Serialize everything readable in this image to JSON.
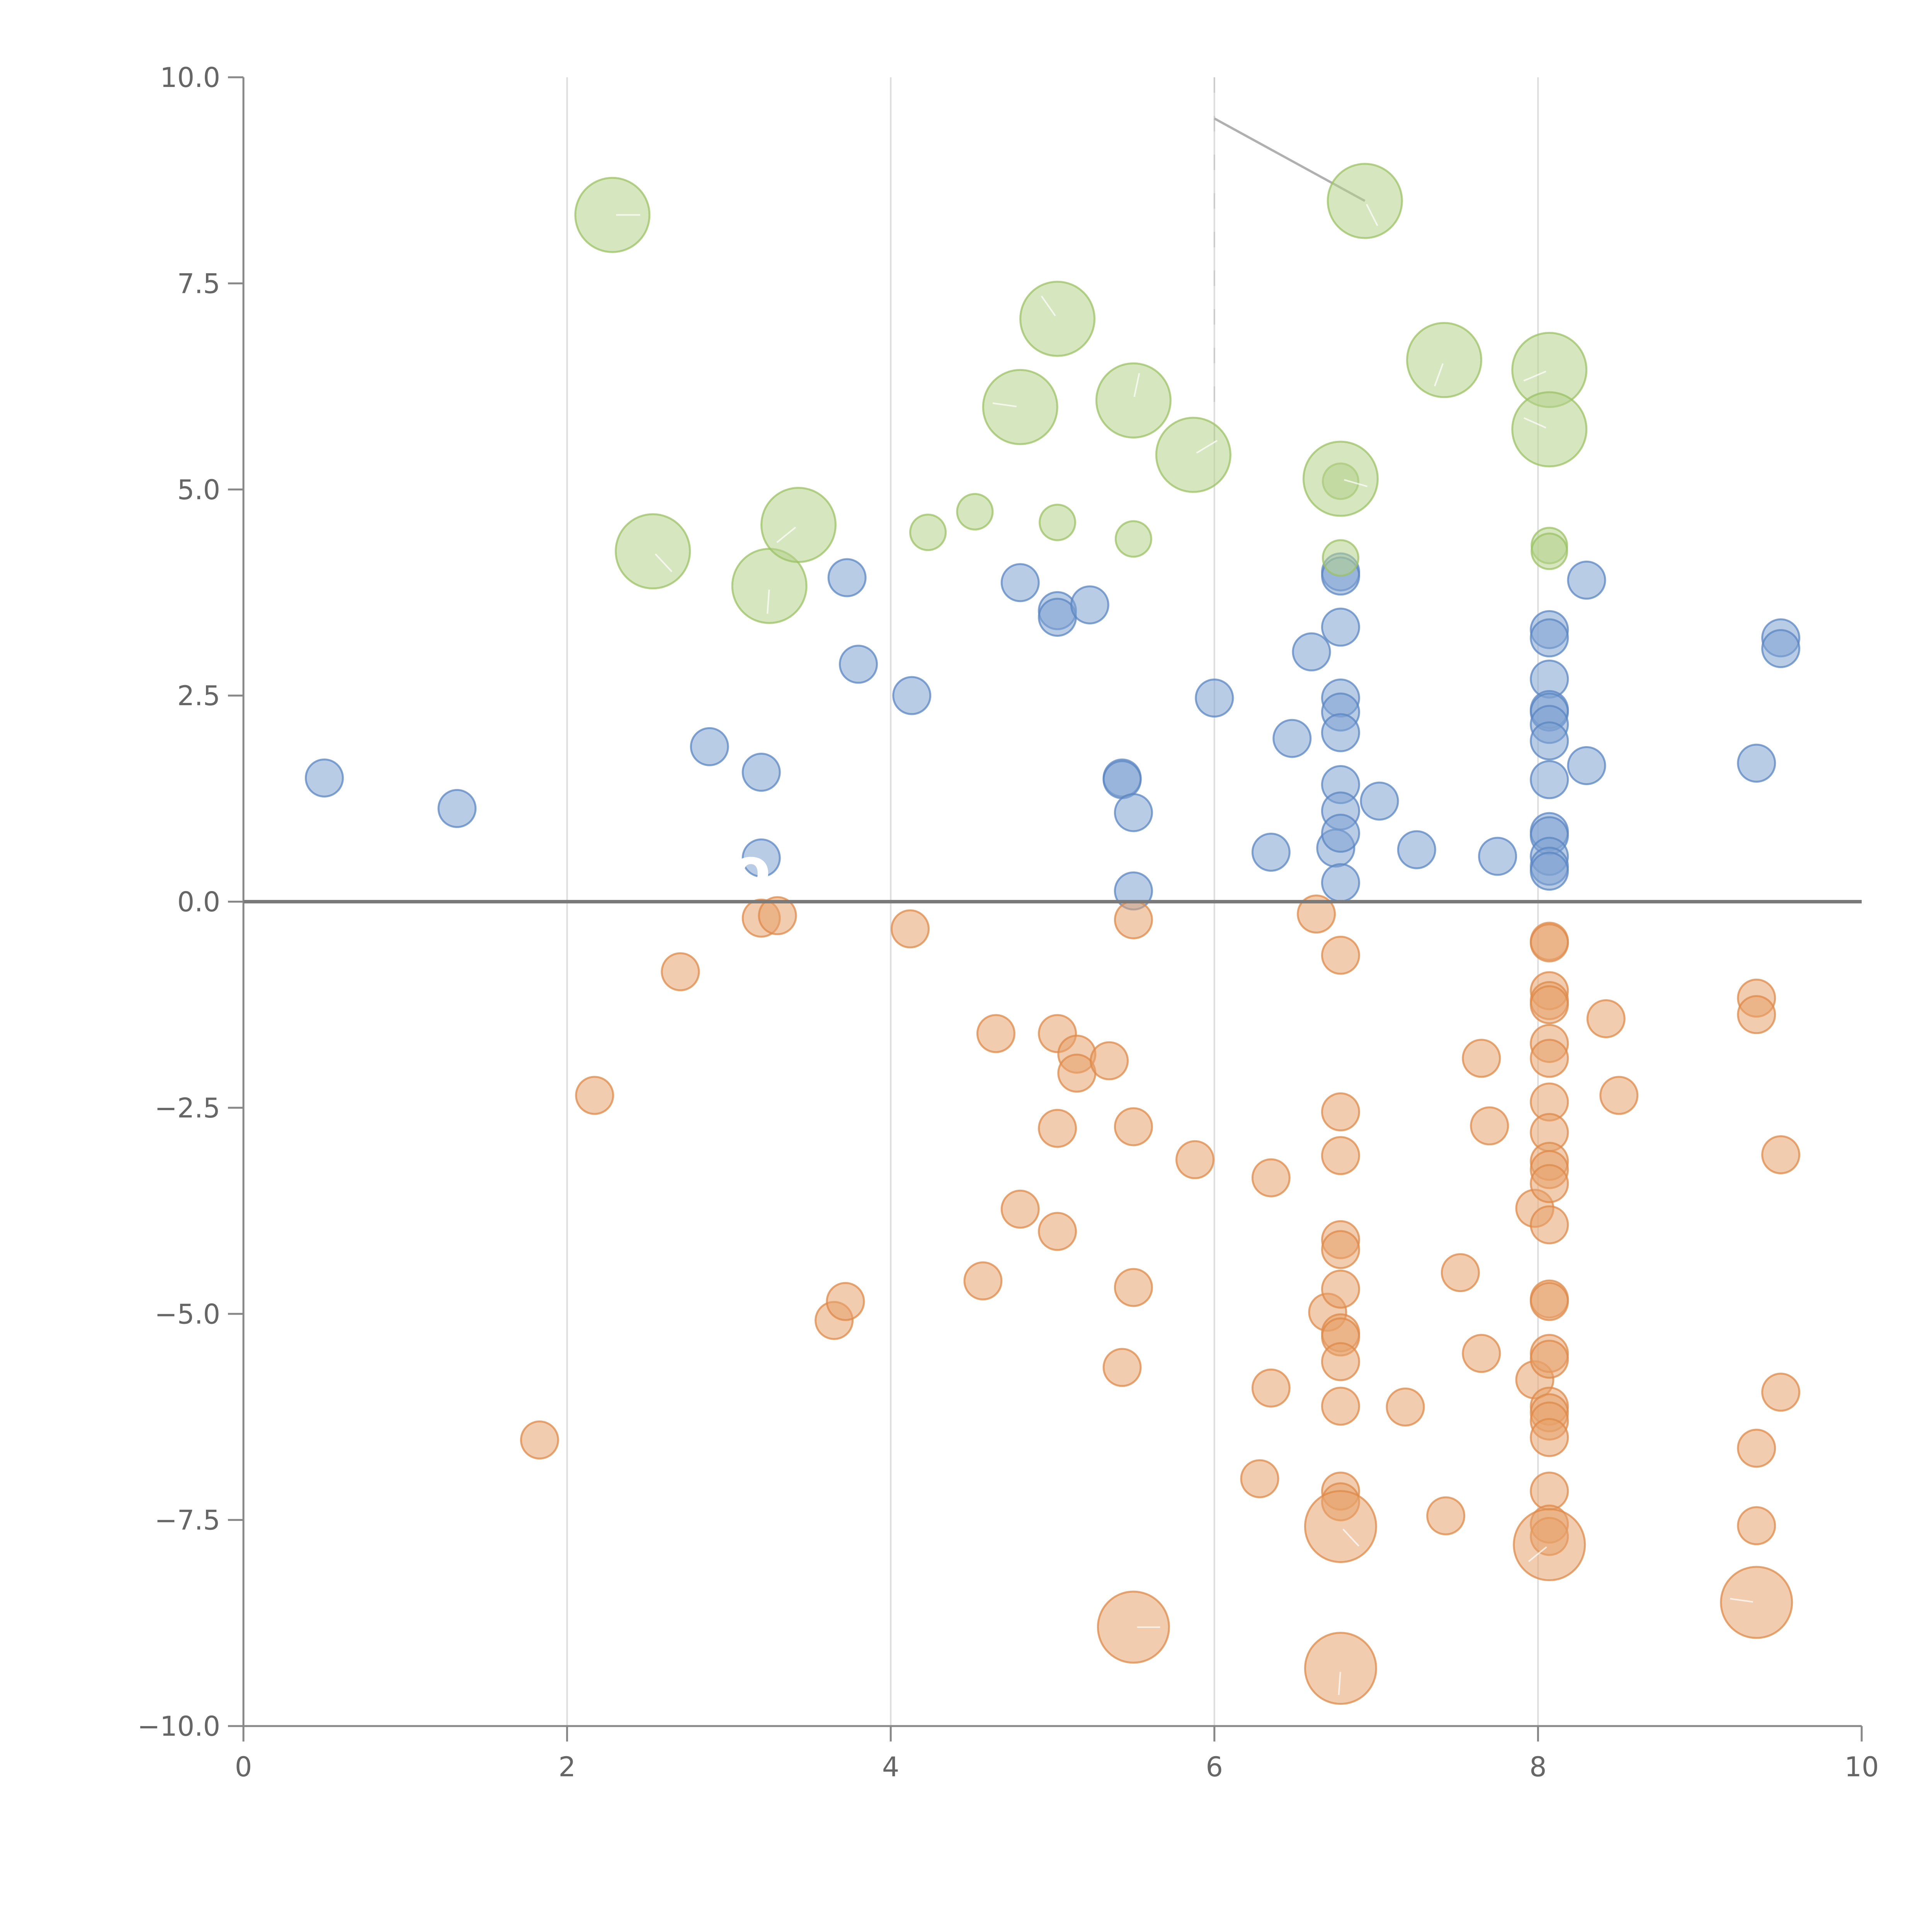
{
  "chart_data": {
    "type": "scatter",
    "title": "",
    "xlabel": "",
    "ylabel": "",
    "xlim": [
      0,
      10
    ],
    "ylim": [
      -10,
      10
    ],
    "xticks": [
      "0",
      "2",
      "4",
      "6",
      "8",
      "10"
    ],
    "yticks": [
      "10.0",
      "7.5",
      "5.0",
      "2.5",
      "0.0",
      "−2.5",
      "−5.0",
      "−7.5",
      "−10.0"
    ],
    "xtick_values": [
      0,
      2,
      4,
      6,
      8,
      10
    ],
    "ytick_values": [
      10,
      7.5,
      5,
      2.5,
      0,
      -2.5,
      -5,
      -7.5,
      -10
    ],
    "xgrid": [
      2,
      4,
      6,
      8
    ],
    "zero_line": 0,
    "grid": true,
    "legend": "none",
    "colors": {
      "blue_fill": "#7fa3d1",
      "blue_stroke": "#5b86c2",
      "orange_fill": "#e8a36b",
      "orange_stroke": "#de8a4a",
      "green_fill": "#b5d18a",
      "green_stroke": "#9cc266",
      "axis": "#888888",
      "grid": "#dddddd"
    },
    "annotation": {
      "leader_from": [
        6.0,
        9.5
      ],
      "leader_to": [
        6.93,
        8.5
      ],
      "dashed_x": 6.0
    },
    "overlay_labels": [
      {
        "text": "S",
        "x": 7.0,
        "y": -9.4
      },
      {
        "text": "co",
        "x": 2.8,
        "y": 0.15
      }
    ],
    "series": [
      {
        "name": "blue",
        "points": [
          [
            0.5,
            1.5
          ],
          [
            1.32,
            1.13
          ],
          [
            2.88,
            1.88
          ],
          [
            3.2,
            1.57
          ],
          [
            3.2,
            0.53
          ],
          [
            3.73,
            3.93
          ],
          [
            3.8,
            2.88
          ],
          [
            4.13,
            2.5
          ],
          [
            4.8,
            3.87
          ],
          [
            5.03,
            3.53
          ],
          [
            5.03,
            3.45
          ],
          [
            5.23,
            3.6
          ],
          [
            5.43,
            1.5
          ],
          [
            5.43,
            1.48
          ],
          [
            5.5,
            1.08
          ],
          [
            5.5,
            0.13
          ],
          [
            6.0,
            2.47
          ],
          [
            6.35,
            0.6
          ],
          [
            6.48,
            1.98
          ],
          [
            6.6,
            3.03
          ],
          [
            6.75,
            0.65
          ],
          [
            6.78,
            4.0
          ],
          [
            6.78,
            3.95
          ],
          [
            6.78,
            3.33
          ],
          [
            6.78,
            2.47
          ],
          [
            6.78,
            2.3
          ],
          [
            6.78,
            2.05
          ],
          [
            6.78,
            1.42
          ],
          [
            6.78,
            1.1
          ],
          [
            6.78,
            0.83
          ],
          [
            6.78,
            0.23
          ],
          [
            7.02,
            1.22
          ],
          [
            7.25,
            0.63
          ],
          [
            7.75,
            0.55
          ],
          [
            8.07,
            3.3
          ],
          [
            8.07,
            3.2
          ],
          [
            8.07,
            2.7
          ],
          [
            8.07,
            2.33
          ],
          [
            8.07,
            2.3
          ],
          [
            8.07,
            2.15
          ],
          [
            8.07,
            1.95
          ],
          [
            8.07,
            1.48
          ],
          [
            8.07,
            0.85
          ],
          [
            8.07,
            0.8
          ],
          [
            8.07,
            0.55
          ],
          [
            8.07,
            0.43
          ],
          [
            8.07,
            0.37
          ],
          [
            8.3,
            3.9
          ],
          [
            8.3,
            1.65
          ],
          [
            9.35,
            1.68
          ],
          [
            9.5,
            3.2
          ],
          [
            9.5,
            3.07
          ]
        ]
      },
      {
        "name": "orange",
        "points": [
          [
            1.83,
            -6.53
          ],
          [
            2.17,
            -2.35
          ],
          [
            2.7,
            -0.85
          ],
          [
            3.2,
            -0.2
          ],
          [
            3.3,
            -0.17
          ],
          [
            3.65,
            -5.08
          ],
          [
            3.72,
            -4.85
          ],
          [
            4.12,
            -0.33
          ],
          [
            4.57,
            -4.6
          ],
          [
            4.65,
            -1.6
          ],
          [
            4.8,
            -3.73
          ],
          [
            5.03,
            -1.6
          ],
          [
            5.03,
            -2.75
          ],
          [
            5.03,
            -4.0
          ],
          [
            5.15,
            -1.85
          ],
          [
            5.15,
            -2.08
          ],
          [
            5.35,
            -1.93
          ],
          [
            5.43,
            -5.65
          ],
          [
            5.5,
            -0.22
          ],
          [
            5.5,
            -2.73
          ],
          [
            5.5,
            -4.68
          ],
          [
            5.88,
            -3.13
          ],
          [
            6.28,
            -7.0
          ],
          [
            6.35,
            -3.35
          ],
          [
            6.35,
            -5.9
          ],
          [
            6.63,
            -0.15
          ],
          [
            6.7,
            -4.98
          ],
          [
            6.78,
            -0.65
          ],
          [
            6.78,
            -2.55
          ],
          [
            6.78,
            -3.08
          ],
          [
            6.78,
            -4.1
          ],
          [
            6.78,
            -4.22
          ],
          [
            6.78,
            -4.7
          ],
          [
            6.78,
            -5.23
          ],
          [
            6.78,
            -5.28
          ],
          [
            6.78,
            -5.58
          ],
          [
            6.78,
            -6.12
          ],
          [
            6.78,
            -7.15
          ],
          [
            6.78,
            -7.28
          ],
          [
            7.18,
            -6.13
          ],
          [
            7.43,
            -7.45
          ],
          [
            7.52,
            -4.5
          ],
          [
            7.65,
            -1.9
          ],
          [
            7.65,
            -5.48
          ],
          [
            7.7,
            -2.72
          ],
          [
            7.98,
            -3.72
          ],
          [
            7.98,
            -5.8
          ],
          [
            8.07,
            -0.48
          ],
          [
            8.07,
            -0.5
          ],
          [
            8.07,
            -1.08
          ],
          [
            8.07,
            -1.2
          ],
          [
            8.07,
            -1.25
          ],
          [
            8.07,
            -1.72
          ],
          [
            8.07,
            -1.9
          ],
          [
            8.07,
            -2.43
          ],
          [
            8.07,
            -2.8
          ],
          [
            8.07,
            -3.15
          ],
          [
            8.07,
            -3.25
          ],
          [
            8.07,
            -3.42
          ],
          [
            8.07,
            -3.92
          ],
          [
            8.07,
            -4.82
          ],
          [
            8.07,
            -4.85
          ],
          [
            8.07,
            -5.48
          ],
          [
            8.07,
            -5.55
          ],
          [
            8.07,
            -6.12
          ],
          [
            8.07,
            -6.2
          ],
          [
            8.07,
            -6.3
          ],
          [
            8.07,
            -6.5
          ],
          [
            8.07,
            -7.15
          ],
          [
            8.07,
            -7.55
          ],
          [
            8.07,
            -7.7
          ],
          [
            8.42,
            -1.42
          ],
          [
            8.5,
            -2.35
          ],
          [
            9.35,
            -1.17
          ],
          [
            9.35,
            -1.37
          ],
          [
            9.35,
            -6.63
          ],
          [
            9.35,
            -7.57
          ],
          [
            9.5,
            -3.07
          ],
          [
            9.5,
            -5.95
          ]
        ]
      },
      {
        "name": "orange-large",
        "points": [
          [
            5.5,
            -8.8
          ],
          [
            6.78,
            -7.58
          ],
          [
            6.78,
            -9.3
          ],
          [
            8.07,
            -7.8
          ],
          [
            9.35,
            -8.5
          ]
        ]
      },
      {
        "name": "green",
        "points": [
          [
            4.23,
            4.48
          ],
          [
            4.52,
            4.73
          ],
          [
            5.03,
            4.6
          ],
          [
            5.5,
            4.4
          ],
          [
            6.78,
            5.1
          ],
          [
            6.78,
            4.17
          ],
          [
            8.07,
            4.32
          ],
          [
            8.07,
            4.25
          ]
        ]
      },
      {
        "name": "green-large",
        "points": [
          [
            2.28,
            8.33
          ],
          [
            2.53,
            4.25
          ],
          [
            3.25,
            3.83
          ],
          [
            3.43,
            4.57
          ],
          [
            4.8,
            6.0
          ],
          [
            5.03,
            7.07
          ],
          [
            5.5,
            6.08
          ],
          [
            5.87,
            5.42
          ],
          [
            6.78,
            5.13
          ],
          [
            6.93,
            8.5
          ],
          [
            7.42,
            6.57
          ],
          [
            8.07,
            6.45
          ],
          [
            8.07,
            5.73
          ]
        ]
      }
    ]
  }
}
